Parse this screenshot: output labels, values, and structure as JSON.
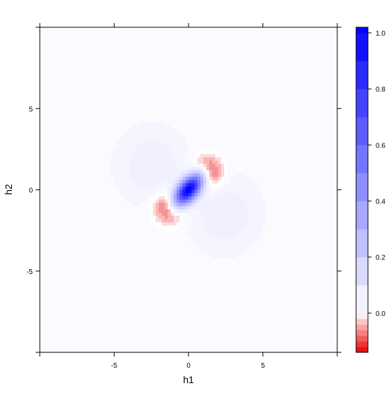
{
  "chart_data": {
    "type": "heatmap",
    "title": "",
    "xlabel": "h1",
    "ylabel": "h2",
    "xlim": [
      -10,
      10
    ],
    "ylim": [
      -10,
      10
    ],
    "x_ticks": [
      -5,
      0,
      5
    ],
    "y_ticks": [
      -5,
      0,
      5
    ],
    "colorbar": {
      "range": [
        -0.14,
        1.02
      ],
      "ticks": [
        0.0,
        0.2,
        0.4,
        0.6,
        0.8,
        1.0
      ],
      "tick_labels": [
        "0.0",
        "0.2",
        "0.4",
        "0.6",
        "0.8",
        "1.0"
      ],
      "negative_color": "#e80000",
      "zero_color": "#ffffff",
      "positive_color": "#0000ff"
    },
    "features": [
      {
        "kind": "peak",
        "label": "positive peak",
        "center": [
          0,
          0
        ],
        "value": 1.0
      },
      {
        "kind": "trough",
        "label": "negative lobe",
        "center": [
          -1.3,
          -1.1
        ],
        "value": -0.13
      },
      {
        "kind": "trough",
        "label": "negative lobe",
        "center": [
          1.3,
          1.1
        ],
        "value": -0.13
      },
      {
        "kind": "lobe",
        "label": "faint positive lobe",
        "center": [
          -2.5,
          1.5
        ],
        "value": 0.05
      },
      {
        "kind": "lobe",
        "label": "faint positive lobe",
        "center": [
          2.5,
          -1.5
        ],
        "value": 0.05
      }
    ],
    "background_value": 0.02,
    "grid": false,
    "legend": "right"
  }
}
